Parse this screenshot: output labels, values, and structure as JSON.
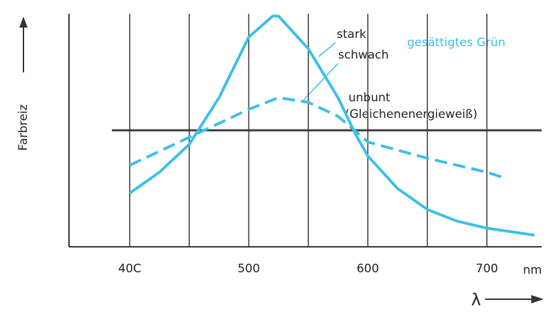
{
  "chart_data": {
    "type": "line",
    "x_label": "λ",
    "x_unit": "nm",
    "y_label": "Farbreiz",
    "xlim": [
      349,
      746
    ],
    "ylim": [
      0,
      100
    ],
    "xticks": [
      {
        "value": 400,
        "label": "40C"
      },
      500,
      600,
      700
    ],
    "minor_xticks": [
      450,
      550,
      650
    ],
    "grid": true,
    "annotation": "gesättigtes Grün",
    "reference": {
      "label": "unbunt",
      "sublabel": "(Gleichenenergieweiß)",
      "y": 50,
      "x": [
        385,
        746
      ],
      "color": "#3a3a3a"
    },
    "series": [
      {
        "name": "stark",
        "color": "#3cbfe8",
        "dashed": false,
        "x": [
          400,
          425,
          450,
          475,
          500,
          520,
          525,
          550,
          575,
          590,
          600,
          625,
          650,
          675,
          700,
          740
        ],
        "values": [
          23,
          32,
          44,
          64,
          90,
          99,
          99,
          85,
          64,
          48,
          39,
          25,
          16,
          11,
          8,
          5
        ]
      },
      {
        "name": "schwach",
        "color": "#3cbfe8",
        "dashed": true,
        "x": [
          400,
          450,
          475,
          500,
          525,
          550,
          575,
          600,
          650,
          700,
          712
        ],
        "values": [
          35,
          47,
          53,
          59,
          64,
          62,
          56,
          45,
          38,
          32,
          30
        ]
      }
    ]
  }
}
